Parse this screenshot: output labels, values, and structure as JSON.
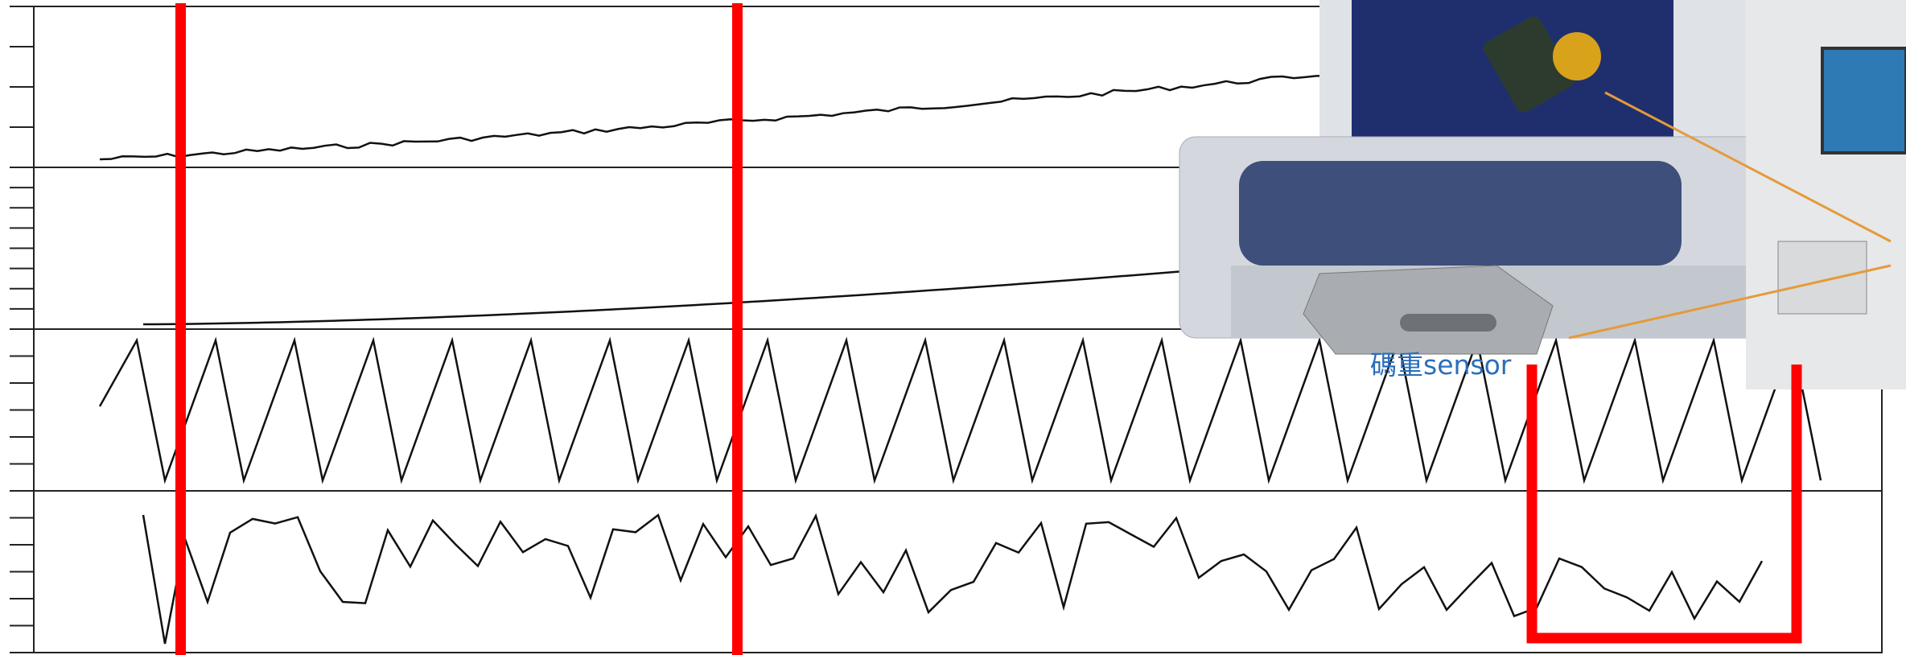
{
  "photo": {
    "sensor_label": "碼重sensor"
  }
}
